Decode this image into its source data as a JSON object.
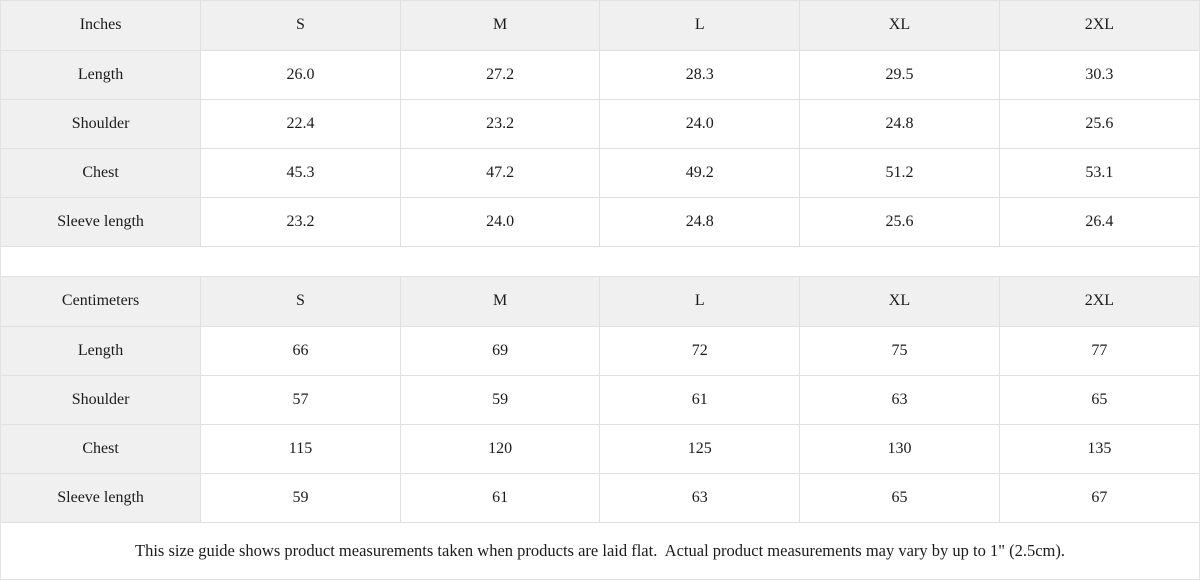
{
  "colors": {
    "header_background": "#f0f0f0",
    "cell_background": "#ffffff",
    "border": "#e0e0e0",
    "text": "#1b1b1b"
  },
  "chart_data": [
    {
      "type": "table",
      "title": "Inches",
      "columns": [
        "Inches",
        "S",
        "M",
        "L",
        "XL",
        "2XL"
      ],
      "rows": [
        {
          "label": "Length",
          "values": [
            "26.0",
            "27.2",
            "28.3",
            "29.5",
            "30.3"
          ]
        },
        {
          "label": "Shoulder",
          "values": [
            "22.4",
            "23.2",
            "24.0",
            "24.8",
            "25.6"
          ]
        },
        {
          "label": "Chest",
          "values": [
            "45.3",
            "47.2",
            "49.2",
            "51.2",
            "53.1"
          ]
        },
        {
          "label": "Sleeve length",
          "values": [
            "23.2",
            "24.0",
            "24.8",
            "25.6",
            "26.4"
          ]
        }
      ]
    },
    {
      "type": "table",
      "title": "Centimeters",
      "columns": [
        "Centimeters",
        "S",
        "M",
        "L",
        "XL",
        "2XL"
      ],
      "rows": [
        {
          "label": "Length",
          "values": [
            "66",
            "69",
            "72",
            "75",
            "77"
          ]
        },
        {
          "label": "Shoulder",
          "values": [
            "57",
            "59",
            "61",
            "63",
            "65"
          ]
        },
        {
          "label": "Chest",
          "values": [
            "115",
            "120",
            "125",
            "130",
            "135"
          ]
        },
        {
          "label": "Sleeve length",
          "values": [
            "59",
            "61",
            "63",
            "65",
            "67"
          ]
        }
      ]
    }
  ],
  "footer": {
    "note": "This size guide shows product measurements taken when products are laid flat.  Actual product measurements may vary by up to 1\" (2.5cm)."
  }
}
